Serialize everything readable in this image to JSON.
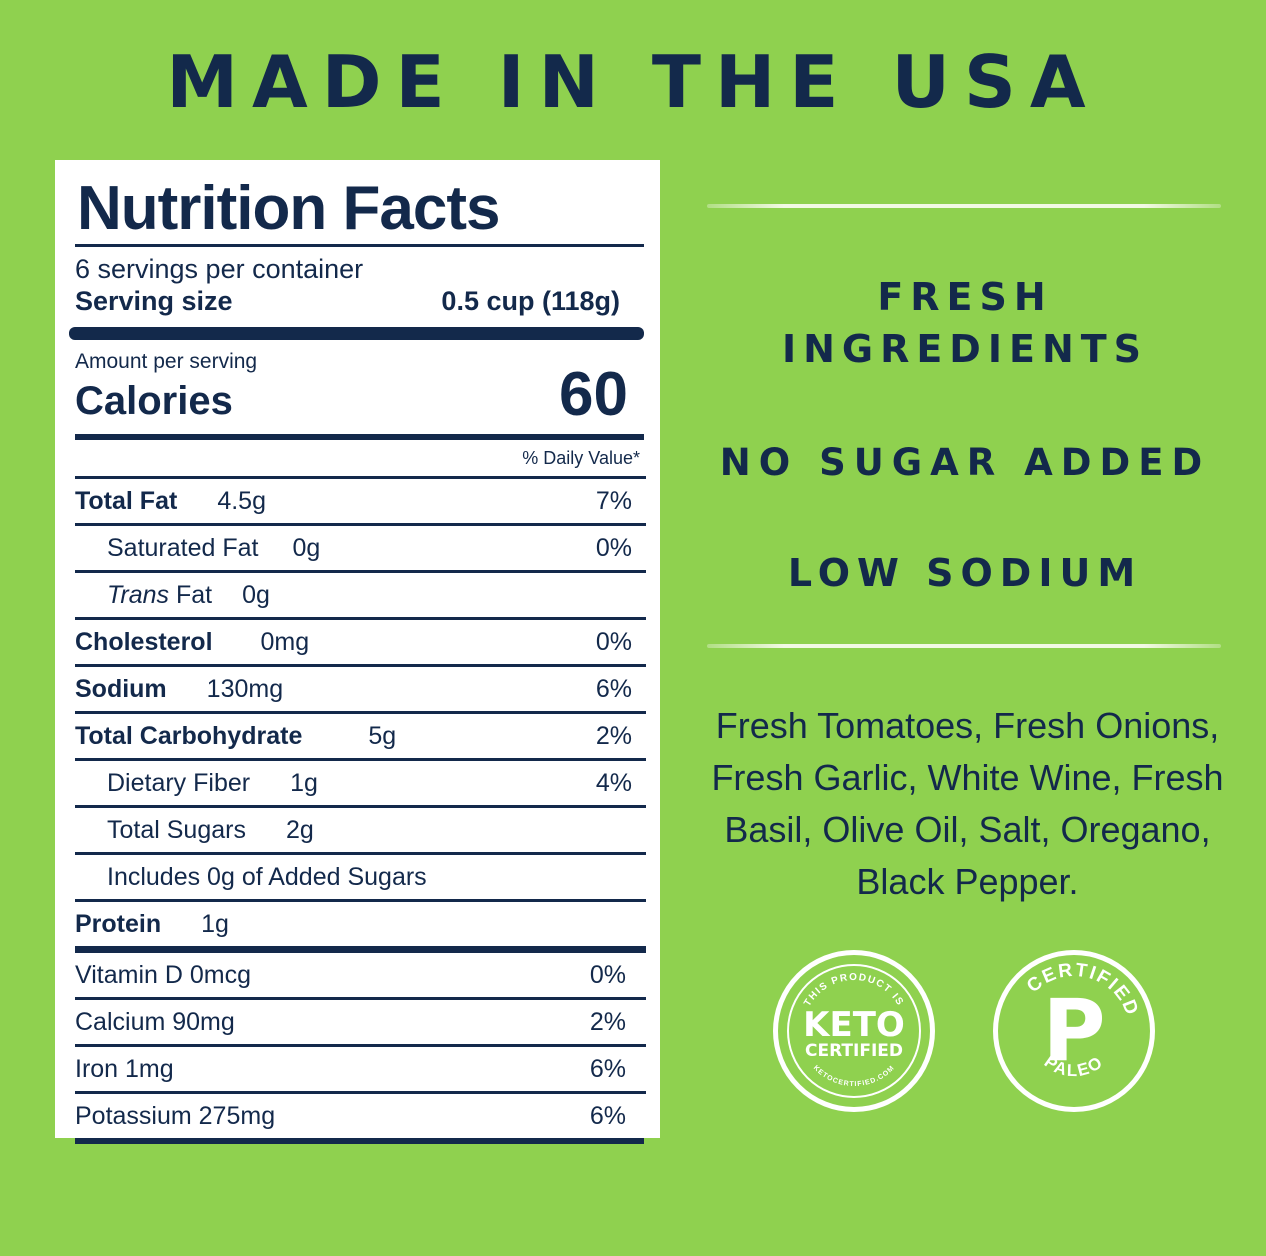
{
  "headline": "MADE IN THE USA",
  "label": {
    "title": "Nutrition Facts",
    "servings_per_container": "6 servings per container",
    "serving_size_label": "Serving size",
    "serving_size_value": "0.5 cup (118g)",
    "amount_per_serving": "Amount per serving",
    "calories_label": "Calories",
    "calories_value": "60",
    "daily_value_header": "% Daily Value*",
    "nutrients": [
      {
        "name": "Total Fat",
        "amount": "4.5g",
        "pct": "7%"
      },
      {
        "name": "Saturated Fat",
        "amount": "0g",
        "pct": "0%"
      },
      {
        "name_italic": "Trans",
        "name": " Fat",
        "amount": "0g",
        "pct": ""
      },
      {
        "name": "Cholesterol",
        "amount": "0mg",
        "pct": "0%"
      },
      {
        "name": "Sodium",
        "amount": "130mg",
        "pct": "6%"
      },
      {
        "name": "Total Carbohydrate",
        "amount": "5g",
        "pct": "2%"
      },
      {
        "name": "Dietary Fiber",
        "amount": "1g",
        "pct": "4%"
      },
      {
        "name": "Total Sugars",
        "amount": "2g",
        "pct": ""
      },
      {
        "name": "Includes 0g of Added Sugars",
        "amount": "",
        "pct": ""
      },
      {
        "name": "Protein",
        "amount": "1g",
        "pct": ""
      }
    ],
    "vitamins": [
      {
        "text": "Vitamin D 0mcg",
        "pct": "0%"
      },
      {
        "text": "Calcium 90mg",
        "pct": "2%"
      },
      {
        "text": "Iron 1mg",
        "pct": "6%"
      },
      {
        "text": "Potassium 275mg",
        "pct": "6%"
      }
    ]
  },
  "claims": [
    "FRESH",
    "INGREDIENTS",
    "NO SUGAR ADDED",
    "LOW SODIUM"
  ],
  "ingredients": [
    "Fresh Tomatoes, Fresh Onions,",
    "Fresh Garlic, White Wine, Fresh",
    "Basil, Olive Oil, Salt, Oregano,",
    "Black Pepper."
  ],
  "badges": {
    "keto": {
      "top_text": "THIS PRODUCT IS",
      "main": "KETO",
      "sub": "CERTIFIED",
      "bottom_text": "KETOCERTIFIED.COM"
    },
    "paleo": {
      "top_text": "CERTIFIED",
      "letter": "P",
      "bottom_text": "PALEO"
    }
  },
  "colors": {
    "background": "#8fd14f",
    "navy": "#13294b",
    "white": "#ffffff"
  }
}
